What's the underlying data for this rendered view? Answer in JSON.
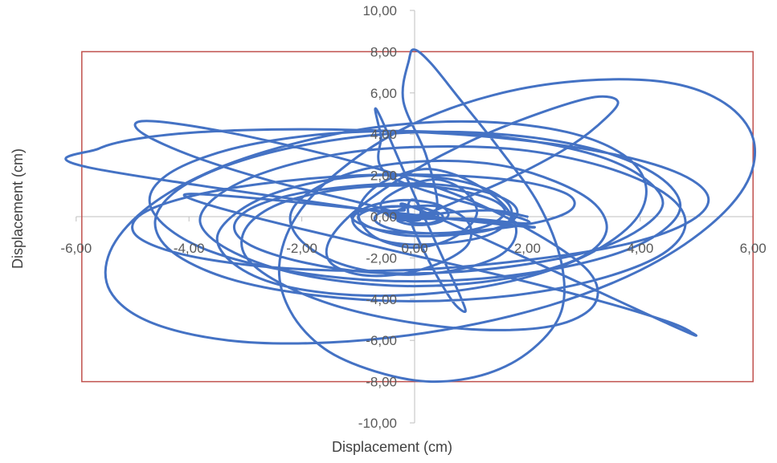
{
  "chart_data": {
    "type": "scatter",
    "style": "smooth-lines",
    "title": "",
    "xlabel": "Displacement (cm)",
    "ylabel": "Displacement (cm)",
    "xlim": [
      -6,
      6
    ],
    "ylim": [
      -10,
      10
    ],
    "x_ticks": [
      -6,
      -4,
      -2,
      0,
      2,
      4,
      6
    ],
    "y_ticks": [
      -10,
      -8,
      -6,
      -4,
      -2,
      0,
      2,
      4,
      6,
      8,
      10
    ],
    "x_tick_labels": [
      "-6,00",
      "-4,00",
      "-2,00",
      "0,00",
      "2,00",
      "4,00",
      "6,00"
    ],
    "y_tick_labels": [
      "-10,00",
      "-8,00",
      "-6,00",
      "-4,00",
      "-2,00",
      "0,00",
      "2,00",
      "4,00",
      "6,00",
      "8,00",
      "10,00"
    ],
    "grid": false,
    "legend": "none",
    "series_color": "#4472c4",
    "boundary_box": {
      "x": [
        -5.9,
        6.0
      ],
      "y": [
        -8.0,
        8.0
      ],
      "color": "#c0504d"
    },
    "series": [
      {
        "values": [
          [
            2.0,
            0.0
          ],
          [
            1.4,
            0.3
          ],
          [
            0.6,
            0.2
          ],
          [
            -0.3,
            -0.1
          ],
          [
            -0.6,
            0.6
          ],
          [
            -0.2,
            1.4
          ],
          [
            0.4,
            1.8
          ],
          [
            0.9,
            1.2
          ],
          [
            1.1,
            0.1
          ],
          [
            0.7,
            -1.0
          ],
          [
            0.0,
            -1.5
          ],
          [
            -0.7,
            -1.0
          ],
          [
            -1.0,
            0.1
          ],
          [
            -0.8,
            1.2
          ],
          [
            -0.3,
            2.0
          ],
          [
            0.3,
            2.3
          ],
          [
            1.0,
            1.7
          ],
          [
            1.6,
            0.5
          ],
          [
            1.8,
            -0.8
          ],
          [
            1.5,
            -1.9
          ],
          [
            0.7,
            -2.6
          ],
          [
            -0.3,
            -2.8
          ],
          [
            -1.3,
            -2.3
          ],
          [
            -2.0,
            -1.2
          ],
          [
            -2.2,
            0.1
          ],
          [
            -1.8,
            1.3
          ],
          [
            -0.9,
            2.3
          ],
          [
            0.3,
            2.7
          ],
          [
            1.5,
            2.5
          ],
          [
            2.5,
            1.7
          ],
          [
            3.2,
            0.6
          ],
          [
            3.4,
            -0.7
          ],
          [
            3.0,
            -1.9
          ],
          [
            2.0,
            -2.8
          ],
          [
            0.7,
            -3.3
          ],
          [
            -0.7,
            -3.3
          ],
          [
            -2.2,
            -2.7
          ],
          [
            -3.3,
            -1.6
          ],
          [
            -3.8,
            -0.3
          ],
          [
            -3.5,
            1.0
          ],
          [
            -2.6,
            2.2
          ],
          [
            -1.2,
            3.1
          ],
          [
            0.4,
            3.4
          ],
          [
            2.0,
            3.2
          ],
          [
            3.5,
            2.3
          ],
          [
            4.5,
            1.0
          ],
          [
            4.8,
            -0.4
          ],
          [
            4.4,
            -1.8
          ],
          [
            3.3,
            -3.0
          ],
          [
            1.8,
            -3.8
          ],
          [
            0.0,
            -4.1
          ],
          [
            -1.8,
            -3.8
          ],
          [
            -3.3,
            -3.0
          ],
          [
            -4.3,
            -1.7
          ],
          [
            -4.6,
            -0.2
          ],
          [
            -4.2,
            1.3
          ],
          [
            -3.2,
            2.6
          ],
          [
            -1.7,
            3.6
          ],
          [
            0.1,
            4.1
          ],
          [
            1.9,
            3.9
          ],
          [
            3.4,
            3.1
          ],
          [
            4.4,
            1.8
          ],
          [
            4.7,
            0.3
          ],
          [
            4.1,
            -1.2
          ],
          [
            2.9,
            -2.3
          ],
          [
            1.2,
            -3.0
          ],
          [
            -0.6,
            -3.1
          ],
          [
            -2.3,
            -2.6
          ],
          [
            -3.6,
            -1.7
          ],
          [
            -4.4,
            -0.5
          ],
          [
            -4.7,
            0.8
          ],
          [
            -4.4,
            2.0
          ],
          [
            -3.6,
            3.0
          ],
          [
            -2.5,
            3.7
          ],
          [
            -1.1,
            4.1
          ],
          [
            0.5,
            4.1
          ],
          [
            2.0,
            3.7
          ],
          [
            3.3,
            2.9
          ],
          [
            4.1,
            1.8
          ],
          [
            4.4,
            0.6
          ],
          [
            4.0,
            -0.6
          ],
          [
            3.2,
            -1.6
          ],
          [
            2.0,
            -2.3
          ],
          [
            0.6,
            -2.7
          ],
          [
            -0.8,
            -2.7
          ],
          [
            -2.0,
            -2.2
          ],
          [
            -2.9,
            -1.4
          ],
          [
            -3.2,
            -0.5
          ],
          [
            -2.9,
            0.4
          ],
          [
            -2.1,
            1.1
          ],
          [
            -1.0,
            1.5
          ],
          [
            0.1,
            1.6
          ],
          [
            1.1,
            1.3
          ],
          [
            1.7,
            0.7
          ],
          [
            1.8,
            0.0
          ],
          [
            1.4,
            -0.6
          ],
          [
            0.6,
            -0.9
          ],
          [
            -0.2,
            -0.9
          ],
          [
            -0.8,
            -0.5
          ],
          [
            -1.0,
            0.0
          ],
          [
            -0.7,
            0.4
          ],
          [
            -0.2,
            0.5
          ],
          [
            0.3,
            0.3
          ],
          [
            0.5,
            0.0
          ],
          [
            0.3,
            -0.3
          ],
          [
            0.0,
            -0.3
          ],
          [
            -0.2,
            -0.1
          ],
          [
            -0.1,
            0.1
          ],
          [
            0.1,
            0.1
          ],
          [
            0.4,
            0.5
          ],
          [
            0.2,
            3.0
          ],
          [
            -0.2,
            5.6
          ],
          [
            -0.1,
            7.6
          ],
          [
            0.0,
            8.1
          ],
          [
            0.3,
            7.4
          ],
          [
            0.8,
            5.7
          ],
          [
            1.5,
            3.3
          ],
          [
            2.2,
            0.6
          ],
          [
            2.6,
            -2.2
          ],
          [
            2.6,
            -4.6
          ],
          [
            2.1,
            -6.4
          ],
          [
            1.3,
            -7.6
          ],
          [
            0.3,
            -8.0
          ],
          [
            -0.7,
            -7.5
          ],
          [
            -1.6,
            -6.4
          ],
          [
            -2.2,
            -4.6
          ],
          [
            -2.4,
            -2.4
          ],
          [
            -2.1,
            0.0
          ],
          [
            -1.3,
            2.3
          ],
          [
            -0.1,
            4.4
          ],
          [
            1.4,
            5.9
          ],
          [
            3.0,
            6.6
          ],
          [
            4.5,
            6.5
          ],
          [
            5.5,
            5.5
          ],
          [
            6.0,
            3.8
          ],
          [
            5.9,
            1.7
          ],
          [
            5.2,
            -0.5
          ],
          [
            4.0,
            -2.6
          ],
          [
            2.4,
            -4.3
          ],
          [
            0.5,
            -5.5
          ],
          [
            -1.5,
            -6.1
          ],
          [
            -3.3,
            -6.0
          ],
          [
            -4.7,
            -5.1
          ],
          [
            -5.4,
            -3.6
          ],
          [
            -5.4,
            -1.7
          ],
          [
            -4.8,
            0.3
          ],
          [
            -3.7,
            2.1
          ],
          [
            -2.2,
            3.5
          ],
          [
            -0.5,
            4.4
          ],
          [
            1.2,
            4.6
          ],
          [
            2.7,
            4.1
          ],
          [
            3.7,
            3.0
          ],
          [
            4.1,
            1.5
          ],
          [
            3.9,
            -0.2
          ],
          [
            3.1,
            -1.8
          ],
          [
            1.9,
            -3.0
          ],
          [
            0.4,
            -3.7
          ],
          [
            -1.1,
            -3.8
          ],
          [
            -2.4,
            -3.3
          ],
          [
            -3.2,
            -2.3
          ],
          [
            -3.5,
            -1.0
          ],
          [
            -3.1,
            0.3
          ],
          [
            -2.3,
            1.3
          ],
          [
            -1.2,
            1.9
          ],
          [
            0.0,
            2.0
          ],
          [
            1.0,
            1.6
          ],
          [
            1.6,
            0.8
          ],
          [
            1.7,
            -0.1
          ],
          [
            1.3,
            -0.9
          ],
          [
            0.5,
            -1.3
          ],
          [
            -0.3,
            -1.3
          ],
          [
            -0.9,
            -0.8
          ],
          [
            -1.1,
            -0.1
          ],
          [
            -0.8,
            0.5
          ],
          [
            -0.2,
            0.8
          ],
          [
            0.4,
            0.6
          ],
          [
            0.6,
            0.1
          ],
          [
            0.4,
            -0.3
          ],
          [
            0.0,
            -0.4
          ],
          [
            -0.3,
            -0.2
          ],
          [
            -0.3,
            0.1
          ],
          [
            -5.8,
            2.4
          ],
          [
            -5.6,
            3.3
          ],
          [
            -4.6,
            3.9
          ],
          [
            -3.0,
            4.2
          ],
          [
            -1.0,
            4.2
          ],
          [
            1.2,
            3.9
          ],
          [
            3.2,
            3.2
          ],
          [
            4.6,
            2.2
          ],
          [
            5.2,
            1.0
          ],
          [
            4.9,
            -0.2
          ],
          [
            3.8,
            -1.3
          ],
          [
            2.0,
            -2.1
          ],
          [
            -0.2,
            -2.6
          ],
          [
            -2.3,
            -2.5
          ],
          [
            -4.0,
            -1.9
          ],
          [
            -4.9,
            -1.0
          ],
          [
            -4.9,
            0.0
          ],
          [
            -4.1,
            0.9
          ],
          [
            -2.7,
            1.6
          ],
          [
            -1.0,
            2.0
          ],
          [
            0.6,
            2.0
          ],
          [
            1.9,
            1.7
          ],
          [
            2.7,
            1.1
          ],
          [
            2.8,
            0.4
          ],
          [
            2.3,
            -0.2
          ],
          [
            1.4,
            -0.6
          ],
          [
            0.4,
            -0.8
          ],
          [
            -0.5,
            -0.7
          ],
          [
            -1.0,
            -0.3
          ],
          [
            -1.1,
            0.1
          ],
          [
            -0.7,
            0.4
          ],
          [
            -0.1,
            0.5
          ],
          [
            0.3,
            0.3
          ],
          [
            0.4,
            0.0
          ],
          [
            0.0,
            0.0
          ],
          [
            -1.0,
            0.7
          ],
          [
            -2.5,
            1.7
          ],
          [
            -3.9,
            2.9
          ],
          [
            -4.8,
            4.0
          ],
          [
            -4.9,
            4.6
          ],
          [
            -4.2,
            4.5
          ],
          [
            -2.8,
            3.8
          ],
          [
            -1.0,
            2.6
          ],
          [
            0.8,
            1.0
          ],
          [
            2.2,
            -0.9
          ],
          [
            3.1,
            -2.7
          ],
          [
            3.2,
            -4.2
          ],
          [
            2.6,
            -5.2
          ],
          [
            1.5,
            -5.5
          ],
          [
            0.1,
            -5.2
          ],
          [
            -1.3,
            -4.4
          ],
          [
            -2.4,
            -3.2
          ],
          [
            -3.0,
            -1.9
          ],
          [
            -3.0,
            -0.6
          ],
          [
            -2.5,
            0.5
          ],
          [
            -1.6,
            1.2
          ],
          [
            -0.5,
            1.5
          ],
          [
            0.5,
            1.4
          ],
          [
            1.3,
            0.9
          ],
          [
            1.6,
            0.3
          ],
          [
            1.4,
            -0.3
          ],
          [
            0.9,
            -0.7
          ],
          [
            0.2,
            -0.8
          ],
          [
            -0.4,
            -0.6
          ],
          [
            -0.7,
            -0.2
          ],
          [
            -0.6,
            0.2
          ],
          [
            -0.2,
            0.3
          ],
          [
            0.2,
            0.2
          ],
          [
            4.5,
            -5.2
          ],
          [
            4.9,
            -5.6
          ],
          [
            4.5,
            -5.1
          ],
          [
            3.3,
            -4.1
          ],
          [
            1.6,
            -2.9
          ],
          [
            -0.3,
            -1.7
          ],
          [
            -2.0,
            -0.6
          ],
          [
            -3.3,
            0.3
          ],
          [
            -4.0,
            0.9
          ],
          [
            -4.0,
            1.1
          ],
          [
            -3.3,
            1.0
          ],
          [
            -2.1,
            0.7
          ],
          [
            -0.7,
            0.3
          ],
          [
            0.6,
            -0.1
          ],
          [
            1.6,
            -0.4
          ],
          [
            2.1,
            -0.5
          ],
          [
            2.0,
            -0.5
          ],
          [
            1.4,
            -0.3
          ],
          [
            0.6,
            -0.1
          ],
          [
            -0.1,
            0.1
          ],
          [
            -0.5,
            0.2
          ],
          [
            0.0,
            0.0
          ],
          [
            0.8,
            0.8
          ],
          [
            1.8,
            2.0
          ],
          [
            2.8,
            3.5
          ],
          [
            3.4,
            4.8
          ],
          [
            3.6,
            5.6
          ],
          [
            3.2,
            5.8
          ],
          [
            2.3,
            5.1
          ],
          [
            1.1,
            3.8
          ],
          [
            -0.1,
            2.1
          ],
          [
            -1.0,
            0.4
          ],
          [
            -1.5,
            -1.1
          ],
          [
            -1.5,
            -2.2
          ],
          [
            -1.0,
            -2.8
          ],
          [
            -0.3,
            -2.8
          ],
          [
            0.4,
            -2.3
          ],
          [
            0.9,
            -1.5
          ],
          [
            1.0,
            -0.6
          ],
          [
            0.8,
            0.1
          ],
          [
            0.4,
            0.5
          ],
          [
            0.0,
            0.5
          ],
          [
            -0.3,
            0.3
          ],
          [
            -0.3,
            0.0
          ],
          [
            0.0,
            -0.1
          ],
          [
            1.0,
            -0.1
          ],
          [
            2.0,
            -0.2
          ],
          [
            -0.4,
            1.9
          ],
          [
            -0.6,
            4.0
          ],
          [
            -0.7,
            5.2
          ],
          [
            -0.6,
            4.8
          ],
          [
            -0.3,
            2.9
          ],
          [
            0.1,
            0.4
          ],
          [
            0.5,
            -2.0
          ],
          [
            0.8,
            -3.8
          ],
          [
            0.9,
            -4.6
          ],
          [
            0.7,
            -4.2
          ],
          [
            0.4,
            -2.9
          ],
          [
            0.1,
            -1.3
          ],
          [
            -0.1,
            0.0
          ],
          [
            -0.1,
            0.7
          ],
          [
            0.0,
            0.8
          ],
          [
            0.1,
            0.4
          ],
          [
            0.1,
            0.0
          ]
        ]
      }
    ]
  }
}
